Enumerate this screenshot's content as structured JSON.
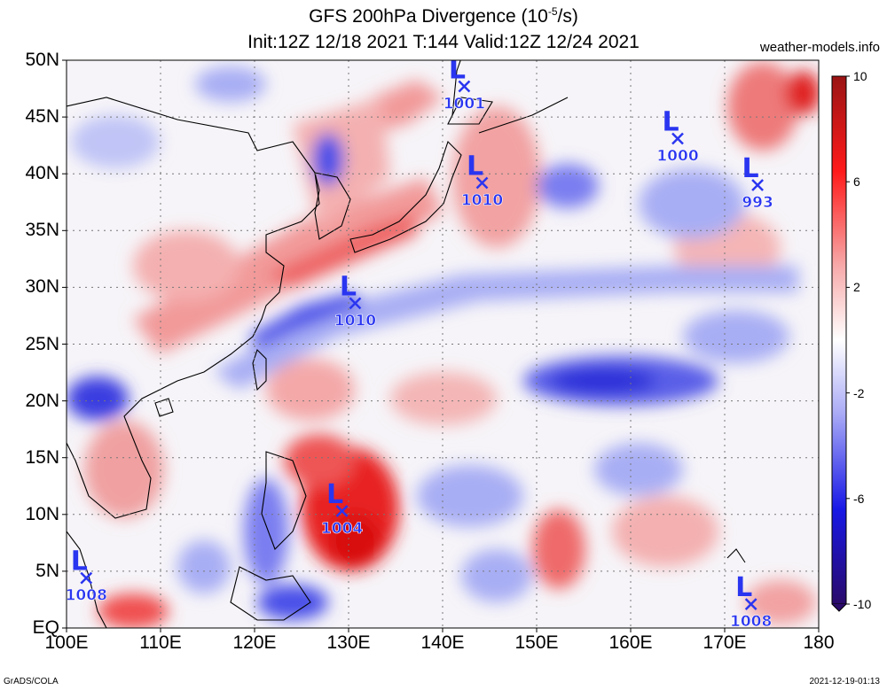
{
  "title": {
    "line1_prefix": "GFS 200hPa Divergence (10",
    "line1_sup": "-5",
    "line1_suffix": "/s)",
    "line2": "Init:12Z 12/18 2021 T:144 Valid:12Z 12/24 2021"
  },
  "source": "weather-models.info",
  "footer": {
    "left": "GrADS/COLA",
    "right": "2021-12-19-01:13"
  },
  "axes": {
    "lat_labels": [
      "50N",
      "45N",
      "40N",
      "35N",
      "30N",
      "25N",
      "20N",
      "15N",
      "10N",
      "5N",
      "EQ"
    ],
    "lat_values": [
      50,
      45,
      40,
      35,
      30,
      25,
      20,
      15,
      10,
      5,
      0
    ],
    "lon_labels": [
      "100E",
      "110E",
      "120E",
      "130E",
      "140E",
      "150E",
      "160E",
      "170E",
      "180"
    ],
    "lon_values": [
      100,
      110,
      120,
      130,
      140,
      150,
      160,
      170,
      180
    ],
    "lon_range": [
      100,
      180
    ],
    "lat_range": [
      0,
      50
    ]
  },
  "colorbar": {
    "labels": [
      "10",
      "6",
      "2",
      "-2",
      "-6",
      "-10"
    ],
    "values": [
      10,
      6,
      2,
      -2,
      -6,
      -10
    ],
    "colors_top_to_bottom": [
      "#b81c1c",
      "#ff2a2a",
      "#f7aaaa",
      "#ffffff",
      "#a9aaf6",
      "#1818e6",
      "#2a0a8a"
    ]
  },
  "lows": [
    {
      "label": "L",
      "pressure": "1001",
      "lon": 142.3,
      "lat": 47.7
    },
    {
      "label": "L",
      "pressure": "1000",
      "lon": 165.0,
      "lat": 43.1
    },
    {
      "label": "L",
      "pressure": "1010",
      "lon": 144.2,
      "lat": 39.2
    },
    {
      "label": "L",
      "pressure": "993",
      "lon": 173.5,
      "lat": 39.0
    },
    {
      "label": "L",
      "pressure": "1010",
      "lon": 130.7,
      "lat": 28.6
    },
    {
      "label": "L",
      "pressure": "1004",
      "lon": 129.3,
      "lat": 10.3
    },
    {
      "label": "L",
      "pressure": "1008",
      "lon": 102.1,
      "lat": 4.4
    },
    {
      "label": "L",
      "pressure": "1008",
      "lon": 172.8,
      "lat": 2.1
    }
  ],
  "field_colors": {
    "strong_pos": "#e81818",
    "pos": "#f29a9a",
    "neutral": "#f6f4f8",
    "neg": "#a8aef4",
    "strong_neg": "#2c30e0"
  }
}
